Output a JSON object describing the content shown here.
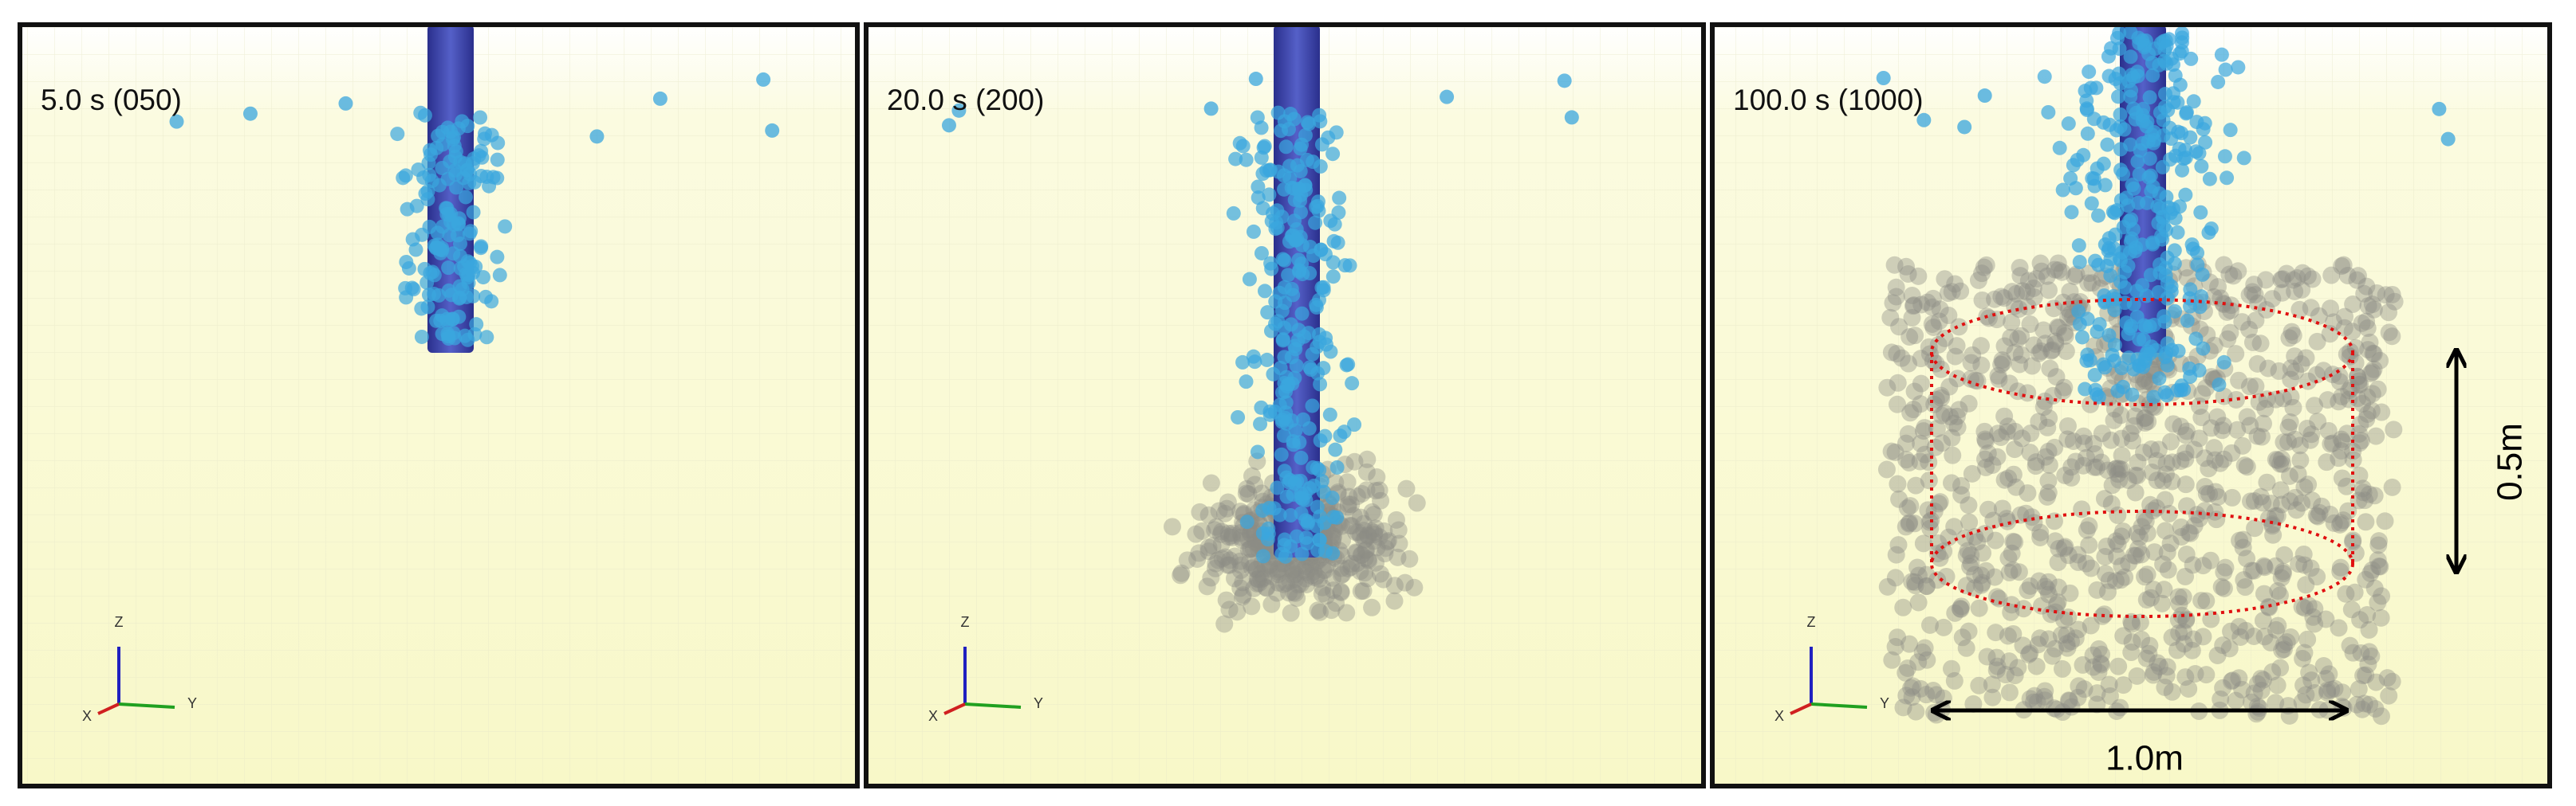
{
  "panels": [
    {
      "time_label": "5.0 s (050)",
      "axes": {
        "z": "Z",
        "x": "X",
        "y": "Y"
      }
    },
    {
      "time_label": "20.0 s (200)",
      "axes": {
        "z": "Z",
        "x": "X",
        "y": "Y"
      }
    },
    {
      "time_label": "100.0 s (1000)",
      "axes": {
        "z": "Z",
        "x": "X",
        "y": "Y"
      }
    }
  ],
  "annotations": {
    "height": "0.5m",
    "diameter": "1.0m"
  }
}
